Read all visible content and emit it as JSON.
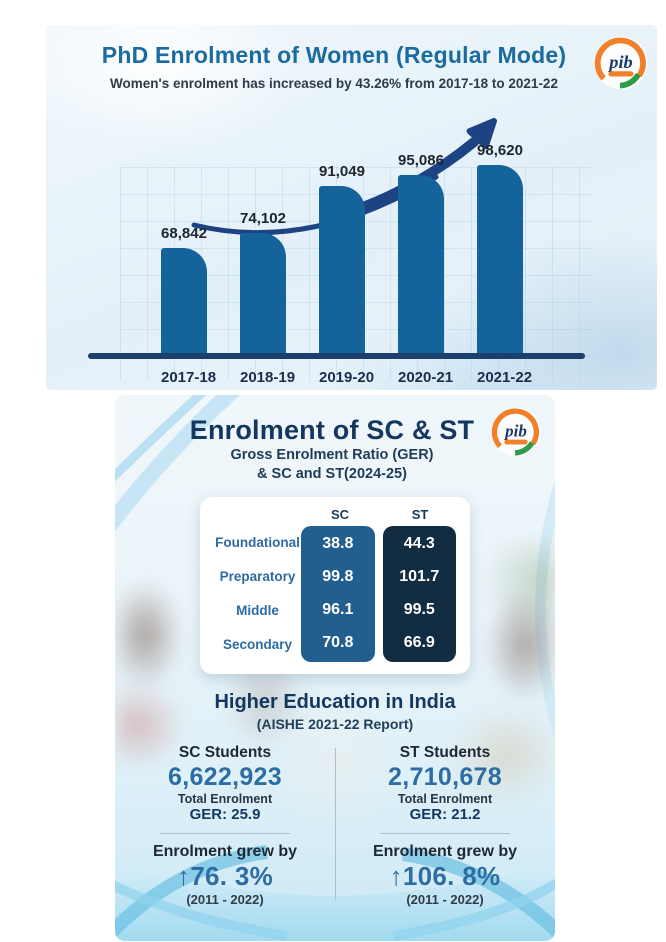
{
  "chart_data": [
    {
      "type": "bar",
      "title": "PhD Enrolment of Women (Regular Mode)",
      "subtitle": "Women's enrolment has increased by 43.26% from 2017-18 to 2021-22",
      "categories": [
        "2017-18",
        "2018-19",
        "2019-20",
        "2020-21",
        "2021-22"
      ],
      "values": [
        68842,
        74102,
        91049,
        95086,
        98620
      ],
      "value_labels": [
        "68,842",
        "74,102",
        "91,049",
        "95,086",
        "98,620"
      ],
      "xlabel": "",
      "ylabel": "",
      "grid": true,
      "legend": "none",
      "annotation": "upward curved trend arrow above bars"
    },
    {
      "type": "table",
      "title": "Gross Enrolment Ratio (GER) & SC and ST(2024-25)",
      "columns": [
        "",
        "SC",
        "ST"
      ],
      "rows": [
        [
          "Foundational",
          "38.8",
          "44.3"
        ],
        [
          "Preparatory",
          "99.8",
          "101.7"
        ],
        [
          "Middle",
          "96.1",
          "99.5"
        ],
        [
          "Secondary",
          "70.8",
          "66.9"
        ]
      ]
    },
    {
      "type": "table",
      "title": "Higher Education in India (AISHE 2021-22 Report)",
      "columns": [
        "SC Students",
        "ST Students"
      ],
      "rows": [
        [
          "Total Enrolment 6,622,923",
          "Total Enrolment 2,710,678"
        ],
        [
          "GER: 25.9",
          "GER: 21.2"
        ],
        [
          "Enrolment grew by ↑76. 3% (2011 - 2022)",
          "Enrolment grew by ↑106. 8% (2011 - 2022)"
        ]
      ]
    }
  ],
  "top": {
    "title": "PhD Enrolment of Women (Regular Mode)",
    "subtitle": "Women's enrolment has increased by 43.26% from 2017-18 to 2021-22",
    "logo_text": "pib",
    "bars": [
      {
        "year": "2017-18",
        "label": "68,842"
      },
      {
        "year": "2018-19",
        "label": "74,102"
      },
      {
        "year": "2019-20",
        "label": "91,049"
      },
      {
        "year": "2020-21",
        "label": "95,086"
      },
      {
        "year": "2021-22",
        "label": "98,620"
      }
    ]
  },
  "bottom": {
    "title": "Enrolment of SC & ST",
    "subtitle1": "Gross Enrolment Ratio (GER)",
    "subtitle2": "& SC and ST(2024-25)",
    "logo_text": "pib",
    "ger_table": {
      "col_sc": "SC",
      "col_st": "ST",
      "rows": [
        {
          "label": "Foundational",
          "sc": "38.8",
          "st": "44.3"
        },
        {
          "label": "Preparatory",
          "sc": "99.8",
          "st": "101.7"
        },
        {
          "label": "Middle",
          "sc": "96.1",
          "st": "99.5"
        },
        {
          "label": "Secondary",
          "sc": "70.8",
          "st": "66.9"
        }
      ]
    },
    "higher_ed": {
      "title": "Higher Education in India",
      "subtitle": "(AISHE 2021-22 Report)",
      "stats": [
        {
          "group": "SC Students",
          "total": "6,622,923",
          "total_label": "Total Enrolment",
          "ger": "GER: 25.9",
          "growth_label": "Enrolment grew by",
          "growth": "↑76. 3%",
          "period": "(2011 - 2022)"
        },
        {
          "group": "ST Students",
          "total": "2,710,678",
          "total_label": "Total Enrolment",
          "ger": "GER: 21.2",
          "growth_label": "Enrolment grew by",
          "growth": "↑106. 8%",
          "period": "(2011 - 2022)"
        }
      ]
    }
  },
  "colors": {
    "bar": "#14639b",
    "baseline": "#1d3f6e",
    "arrow": "#1d4382",
    "sc_pill": "#235f8e",
    "st_pill": "#122c42",
    "accent_blue": "#2e6da4",
    "navy": "#14375f",
    "cyan_wave": "#7fc9e6"
  }
}
